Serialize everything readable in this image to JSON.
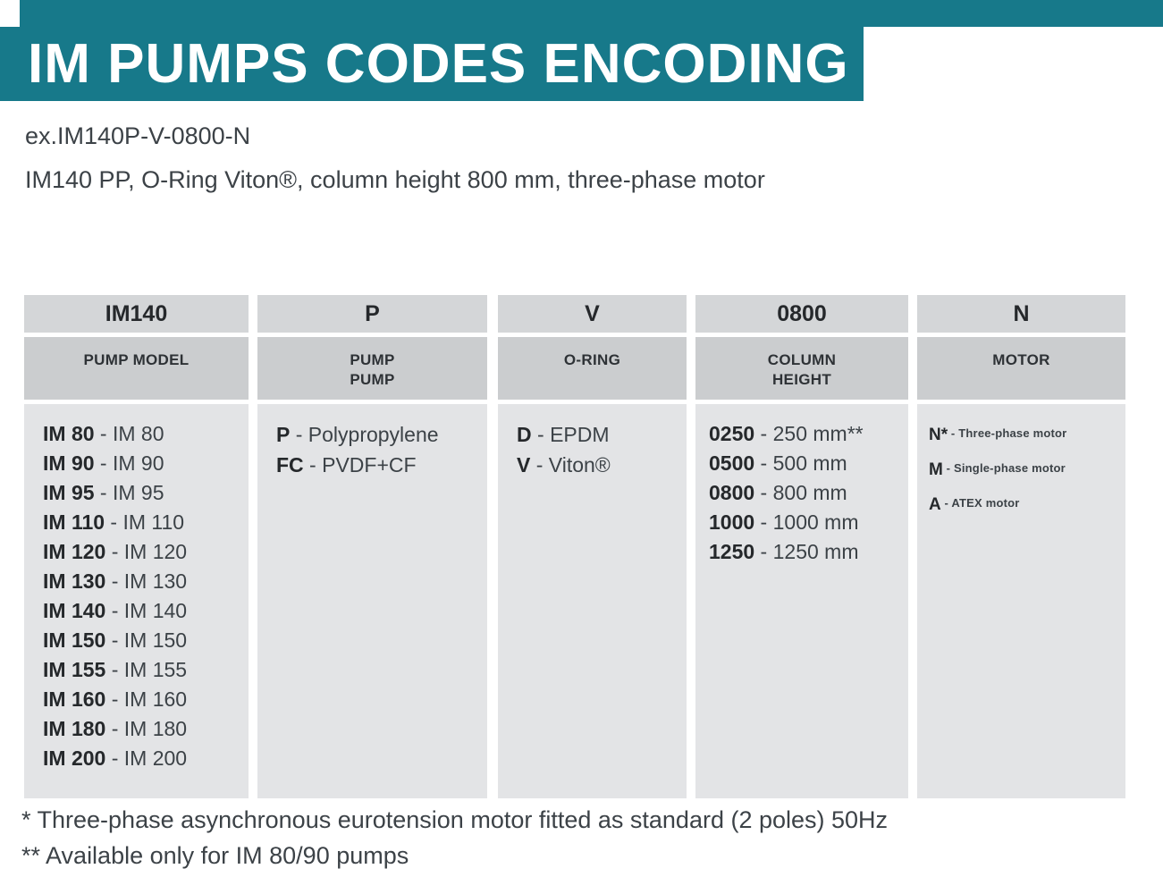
{
  "page": {
    "title": "IM PUMPS CODES ENCODING",
    "example_code": "ex.IM140P-V-0800-N",
    "example_description": "IM140 PP, O-Ring Viton®, column height 800 mm, three-phase motor",
    "footnotes": [
      "* Three-phase asynchronous eurotension motor fitted as standard (2 poles) 50Hz",
      "** Available only for IM 80/90 pumps"
    ]
  },
  "colors": {
    "accent_teal": "#17798a",
    "header_gray": "#d4d6d8",
    "subheader_gray": "#cbcdcf",
    "body_gray": "#e3e4e6",
    "text_dark": "#3c4247"
  },
  "table": {
    "columns": [
      {
        "code": "IM140",
        "label": "PUMP MODEL",
        "label2": "",
        "items": [
          {
            "code": "IM 80",
            "rest": " - IM 80"
          },
          {
            "code": "IM 90",
            "rest": " - IM 90"
          },
          {
            "code": "IM 95",
            "rest": " - IM 95"
          },
          {
            "code": "IM 110",
            "rest": " - IM 110"
          },
          {
            "code": "IM 120",
            "rest": " - IM 120"
          },
          {
            "code": "IM 130",
            "rest": " - IM 130"
          },
          {
            "code": "IM 140",
            "rest": " - IM 140"
          },
          {
            "code": "IM 150",
            "rest": " - IM 150"
          },
          {
            "code": "IM 155",
            "rest": " - IM 155"
          },
          {
            "code": "IM 160",
            "rest": " - IM 160"
          },
          {
            "code": "IM 180",
            "rest": " - IM 180"
          },
          {
            "code": "IM 200",
            "rest": " - IM 200"
          }
        ]
      },
      {
        "code": "P",
        "label": "PUMP",
        "label2": "PUMP",
        "items": [
          {
            "code": "P",
            "rest": " - Polypropylene"
          },
          {
            "code": "FC",
            "rest": " - PVDF+CF"
          }
        ]
      },
      {
        "code": "V",
        "label": "O-RING",
        "label2": "",
        "items": [
          {
            "code": "D",
            "rest": " - EPDM"
          },
          {
            "code": "V",
            "rest": " - Viton®"
          }
        ]
      },
      {
        "code": "0800",
        "label": "COLUMN",
        "label2": "HEIGHT",
        "items": [
          {
            "code": "0250",
            "rest": " - 250 mm**"
          },
          {
            "code": "0500",
            "rest": " - 500 mm"
          },
          {
            "code": "0800",
            "rest": " - 800 mm"
          },
          {
            "code": "1000",
            "rest": " - 1000 mm"
          },
          {
            "code": "1250",
            "rest": " - 1250 mm"
          }
        ]
      },
      {
        "code": "N",
        "label": "MOTOR",
        "label2": "",
        "items": [
          {
            "code": "N*",
            "rest": " - Three-phase motor"
          },
          {
            "code": "M",
            "rest": " - Single-phase motor"
          },
          {
            "code": "A",
            "rest": " - ATEX motor"
          }
        ]
      }
    ]
  }
}
